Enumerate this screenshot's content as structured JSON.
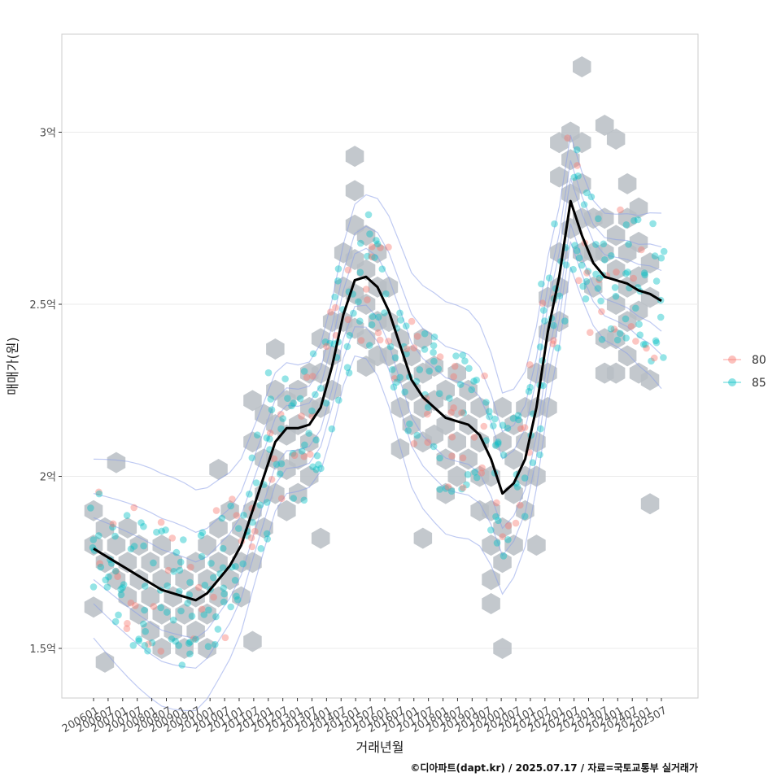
{
  "chart_data": {
    "type": "scatter",
    "title": "",
    "xlabel": "거래년월",
    "ylabel": "매매가(원)",
    "ylim": [
      1.35,
      3.28
    ],
    "y_unit": "억",
    "yticks": [
      {
        "value": 1.5,
        "label": "1.5억"
      },
      {
        "value": 2.0,
        "label": "2억"
      },
      {
        "value": 2.5,
        "label": "2.5억"
      },
      {
        "value": 3.0,
        "label": "3억"
      }
    ],
    "xticks": [
      "200601",
      "200607",
      "200701",
      "200707",
      "200801",
      "200807",
      "200901",
      "200907",
      "201001",
      "201007",
      "201101",
      "201107",
      "201201",
      "201207",
      "201301",
      "201307",
      "201401",
      "201407",
      "201501",
      "201507",
      "201601",
      "201607",
      "201701",
      "201707",
      "201801",
      "201807",
      "201901",
      "201907",
      "202001",
      "202007",
      "202101",
      "202107",
      "202201",
      "202207",
      "202301",
      "202307",
      "202401",
      "202407",
      "202501",
      "202507"
    ],
    "legend": {
      "position": "right",
      "entries": [
        {
          "label": "80",
          "color": "#F8766D"
        },
        {
          "label": "85",
          "color": "#00BFC4"
        }
      ]
    },
    "trend_line": {
      "name": "moving-average",
      "color": "#000000",
      "points": [
        [
          0,
          1.79
        ],
        [
          1,
          1.77
        ],
        [
          2,
          1.75
        ],
        [
          3,
          1.73
        ],
        [
          4,
          1.71
        ],
        [
          5,
          1.69
        ],
        [
          6,
          1.67
        ],
        [
          7,
          1.66
        ],
        [
          8,
          1.65
        ],
        [
          9,
          1.64
        ],
        [
          10,
          1.66
        ],
        [
          11,
          1.7
        ],
        [
          12,
          1.74
        ],
        [
          13,
          1.8
        ],
        [
          14,
          1.9
        ],
        [
          15,
          2.0
        ],
        [
          16,
          2.1
        ],
        [
          17,
          2.14
        ],
        [
          18,
          2.14
        ],
        [
          19,
          2.15
        ],
        [
          20,
          2.2
        ],
        [
          21,
          2.32
        ],
        [
          22,
          2.47
        ],
        [
          23,
          2.57
        ],
        [
          24,
          2.58
        ],
        [
          25,
          2.55
        ],
        [
          26,
          2.48
        ],
        [
          27,
          2.38
        ],
        [
          28,
          2.28
        ],
        [
          29,
          2.23
        ],
        [
          30,
          2.2
        ],
        [
          31,
          2.17
        ],
        [
          32,
          2.16
        ],
        [
          33,
          2.15
        ],
        [
          34,
          2.12
        ],
        [
          35,
          2.05
        ],
        [
          36,
          1.95
        ],
        [
          37,
          1.98
        ],
        [
          38,
          2.05
        ],
        [
          39,
          2.2
        ],
        [
          40,
          2.42
        ],
        [
          41,
          2.58
        ],
        [
          42,
          2.8
        ],
        [
          43,
          2.7
        ],
        [
          44,
          2.62
        ],
        [
          45,
          2.58
        ],
        [
          46,
          2.57
        ],
        [
          47,
          2.56
        ],
        [
          48,
          2.54
        ],
        [
          49,
          2.53
        ],
        [
          50,
          2.51
        ]
      ]
    },
    "hex_bins": [
      [
        0,
        1.9
      ],
      [
        0,
        1.8
      ],
      [
        0,
        1.62
      ],
      [
        1,
        1.85
      ],
      [
        1,
        1.75
      ],
      [
        1,
        1.46
      ],
      [
        2,
        2.04
      ],
      [
        2,
        1.8
      ],
      [
        2,
        1.7
      ],
      [
        3,
        1.85
      ],
      [
        3,
        1.75
      ],
      [
        3,
        1.65
      ],
      [
        4,
        1.8
      ],
      [
        4,
        1.7
      ],
      [
        4,
        1.6
      ],
      [
        5,
        1.75
      ],
      [
        5,
        1.65
      ],
      [
        5,
        1.55
      ],
      [
        6,
        1.8
      ],
      [
        6,
        1.7
      ],
      [
        6,
        1.6
      ],
      [
        6,
        1.5
      ],
      [
        7,
        1.75
      ],
      [
        7,
        1.65
      ],
      [
        7,
        1.55
      ],
      [
        8,
        1.7
      ],
      [
        8,
        1.6
      ],
      [
        8,
        1.5
      ],
      [
        9,
        1.75
      ],
      [
        9,
        1.65
      ],
      [
        9,
        1.55
      ],
      [
        10,
        1.8
      ],
      [
        10,
        1.7
      ],
      [
        10,
        1.6
      ],
      [
        10,
        1.5
      ],
      [
        11,
        2.02
      ],
      [
        11,
        1.85
      ],
      [
        11,
        1.75
      ],
      [
        11,
        1.65
      ],
      [
        12,
        1.9
      ],
      [
        12,
        1.8
      ],
      [
        12,
        1.7
      ],
      [
        13,
        1.85
      ],
      [
        13,
        1.75
      ],
      [
        13,
        1.65
      ],
      [
        14,
        2.22
      ],
      [
        14,
        2.1
      ],
      [
        14,
        1.9
      ],
      [
        14,
        1.75
      ],
      [
        14,
        1.52
      ],
      [
        15,
        2.18
      ],
      [
        15,
        2.05
      ],
      [
        15,
        1.95
      ],
      [
        15,
        1.85
      ],
      [
        16,
        2.37
      ],
      [
        16,
        2.25
      ],
      [
        16,
        2.15
      ],
      [
        16,
        2.05
      ],
      [
        16,
        1.95
      ],
      [
        17,
        2.22
      ],
      [
        17,
        2.12
      ],
      [
        17,
        2.02
      ],
      [
        17,
        1.9
      ],
      [
        18,
        2.25
      ],
      [
        18,
        2.15
      ],
      [
        18,
        2.05
      ],
      [
        18,
        1.95
      ],
      [
        19,
        2.3
      ],
      [
        19,
        2.2
      ],
      [
        19,
        2.1
      ],
      [
        19,
        2.0
      ],
      [
        20,
        2.4
      ],
      [
        20,
        2.3
      ],
      [
        20,
        2.2
      ],
      [
        20,
        1.82
      ],
      [
        21,
        2.45
      ],
      [
        21,
        2.35
      ],
      [
        21,
        2.25
      ],
      [
        22,
        2.65
      ],
      [
        22,
        2.55
      ],
      [
        22,
        2.45
      ],
      [
        23,
        2.93
      ],
      [
        23,
        2.83
      ],
      [
        23,
        2.73
      ],
      [
        23,
        2.63
      ],
      [
        23,
        2.53
      ],
      [
        23,
        2.43
      ],
      [
        24,
        2.7
      ],
      [
        24,
        2.6
      ],
      [
        24,
        2.5
      ],
      [
        24,
        2.4
      ],
      [
        24,
        2.32
      ],
      [
        25,
        2.65
      ],
      [
        25,
        2.55
      ],
      [
        25,
        2.45
      ],
      [
        25,
        2.35
      ],
      [
        26,
        2.55
      ],
      [
        26,
        2.45
      ],
      [
        26,
        2.35
      ],
      [
        27,
        2.4
      ],
      [
        27,
        2.3
      ],
      [
        27,
        2.2
      ],
      [
        27,
        2.08
      ],
      [
        28,
        2.35
      ],
      [
        28,
        2.25
      ],
      [
        28,
        2.15
      ],
      [
        29,
        2.4
      ],
      [
        29,
        2.3
      ],
      [
        29,
        2.2
      ],
      [
        29,
        2.1
      ],
      [
        29,
        1.82
      ],
      [
        30,
        2.32
      ],
      [
        30,
        2.22
      ],
      [
        30,
        2.12
      ],
      [
        31,
        2.25
      ],
      [
        31,
        2.15
      ],
      [
        31,
        2.05
      ],
      [
        31,
        1.95
      ],
      [
        32,
        2.3
      ],
      [
        32,
        2.2
      ],
      [
        32,
        2.1
      ],
      [
        32,
        2.0
      ],
      [
        33,
        2.25
      ],
      [
        33,
        2.15
      ],
      [
        33,
        2.05
      ],
      [
        34,
        2.2
      ],
      [
        34,
        2.1
      ],
      [
        34,
        2.0
      ],
      [
        34,
        1.9
      ],
      [
        35,
        2.0
      ],
      [
        35,
        1.9
      ],
      [
        35,
        1.8
      ],
      [
        35,
        1.7
      ],
      [
        35,
        1.63
      ],
      [
        36,
        2.2
      ],
      [
        36,
        2.1
      ],
      [
        36,
        1.85
      ],
      [
        36,
        1.75
      ],
      [
        36,
        1.5
      ],
      [
        37,
        2.15
      ],
      [
        37,
        2.05
      ],
      [
        37,
        1.95
      ],
      [
        37,
        1.8
      ],
      [
        38,
        2.2
      ],
      [
        38,
        2.1
      ],
      [
        38,
        2.0
      ],
      [
        38,
        1.9
      ],
      [
        39,
        2.3
      ],
      [
        39,
        2.2
      ],
      [
        39,
        2.1
      ],
      [
        39,
        2.0
      ],
      [
        39,
        1.8
      ],
      [
        40,
        2.52
      ],
      [
        40,
        2.42
      ],
      [
        40,
        2.3
      ],
      [
        40,
        2.2
      ],
      [
        41,
        2.97
      ],
      [
        41,
        2.87
      ],
      [
        41,
        2.65
      ],
      [
        41,
        2.55
      ],
      [
        41,
        2.45
      ],
      [
        42,
        3.0
      ],
      [
        42,
        2.92
      ],
      [
        42,
        2.82
      ],
      [
        42,
        2.72
      ],
      [
        43,
        3.19
      ],
      [
        43,
        2.97
      ],
      [
        43,
        2.85
      ],
      [
        43,
        2.75
      ],
      [
        43,
        2.65
      ],
      [
        44,
        2.75
      ],
      [
        44,
        2.65
      ],
      [
        44,
        2.55
      ],
      [
        45,
        3.02
      ],
      [
        45,
        2.75
      ],
      [
        45,
        2.65
      ],
      [
        45,
        2.4
      ],
      [
        45,
        2.3
      ],
      [
        46,
        2.98
      ],
      [
        46,
        2.7
      ],
      [
        46,
        2.6
      ],
      [
        46,
        2.5
      ],
      [
        46,
        2.4
      ],
      [
        46,
        2.3
      ],
      [
        47,
        2.85
      ],
      [
        47,
        2.75
      ],
      [
        47,
        2.65
      ],
      [
        47,
        2.55
      ],
      [
        47,
        2.45
      ],
      [
        47,
        2.35
      ],
      [
        48,
        2.78
      ],
      [
        48,
        2.68
      ],
      [
        48,
        2.58
      ],
      [
        48,
        2.48
      ],
      [
        48,
        2.3
      ],
      [
        49,
        2.62
      ],
      [
        49,
        2.52
      ],
      [
        49,
        2.28
      ],
      [
        49,
        1.92
      ]
    ]
  },
  "caption": "©디아파트(dapt.kr) / 2025.07.17 / 자료=국토교통부 실거래가"
}
